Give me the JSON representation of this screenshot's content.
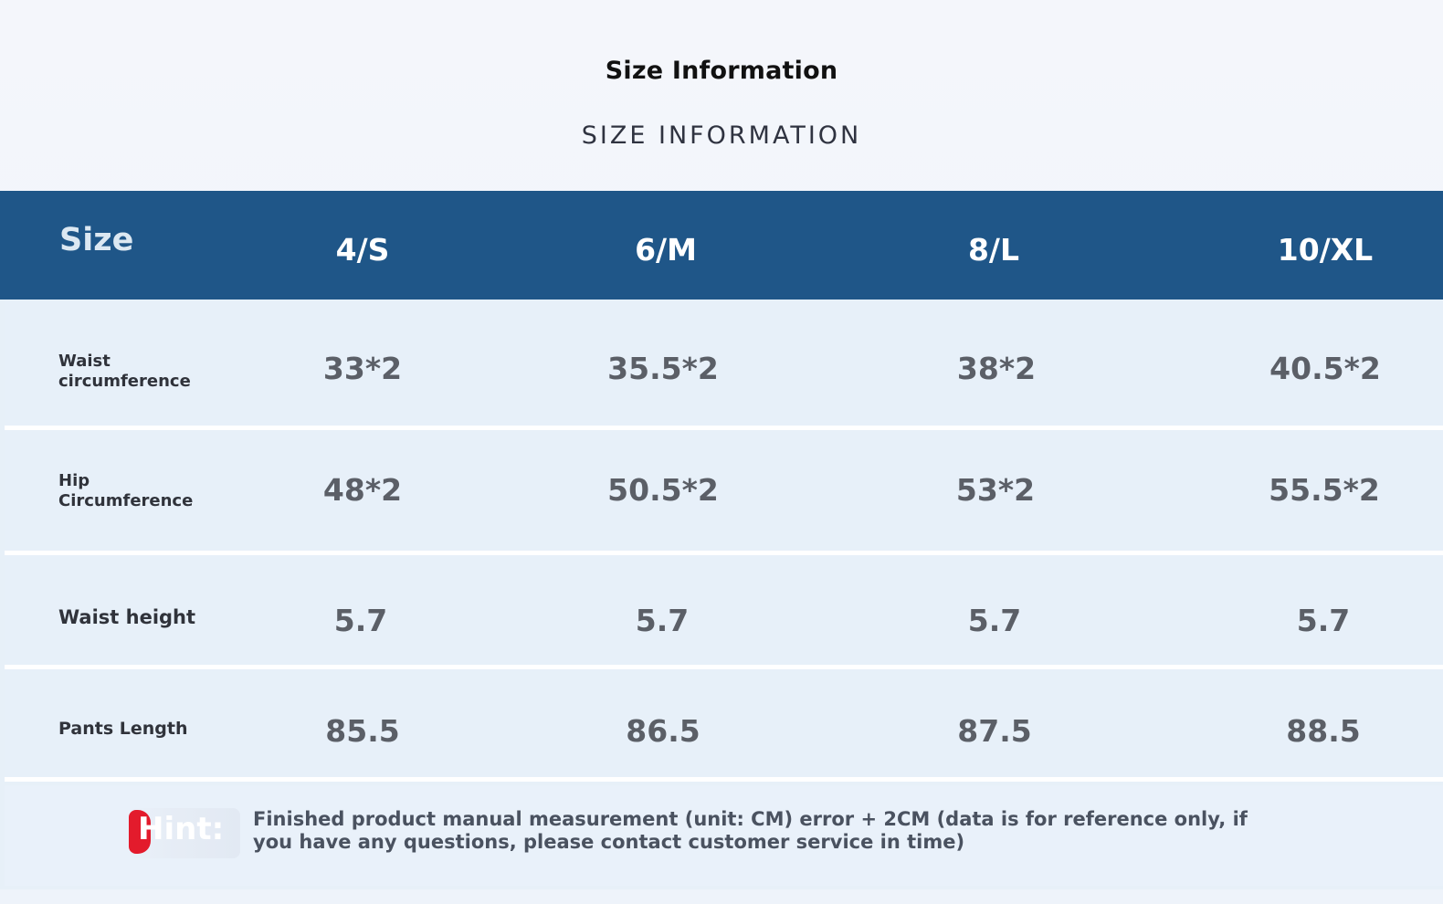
{
  "heading": {
    "title": "Size Information",
    "subtitle": "SIZE INFORMATION"
  },
  "table": {
    "corner_label": "Size",
    "columns": [
      "4/S",
      "6/M",
      "8/L",
      "10/XL"
    ],
    "rows": [
      {
        "label_lines": [
          "Waist",
          "circumference"
        ],
        "values": [
          "33*2",
          "35.5*2",
          "38*2",
          "40.5*2"
        ]
      },
      {
        "label_lines": [
          "Hip",
          "Circumference"
        ],
        "values": [
          "48*2",
          "50.5*2",
          "53*2",
          "55.5*2"
        ]
      },
      {
        "label": "Waist height",
        "values": [
          "5.7",
          "5.7",
          "5.7",
          "5.7"
        ]
      },
      {
        "label": "Pants Length",
        "values": [
          "85.5",
          "86.5",
          "87.5",
          "88.5"
        ]
      }
    ]
  },
  "hint": {
    "label": "Hint:",
    "text": "Finished product manual measurement (unit: CM) error + 2CM (data is for reference only, if you have any questions, please contact customer service in time)"
  },
  "colors": {
    "header_bg": "#1f5688",
    "row_bg": "#e7f0f9",
    "hint_accent": "#e31b2c"
  }
}
